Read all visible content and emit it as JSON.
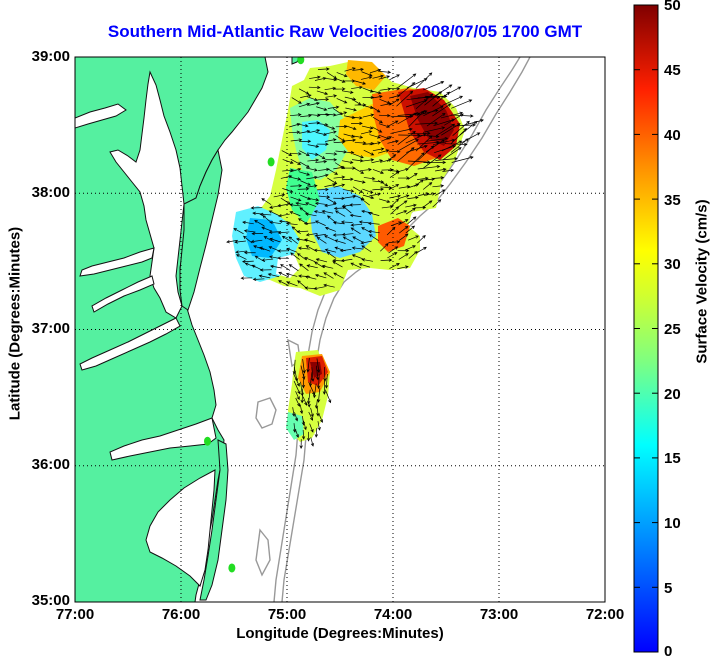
{
  "title": "Southern Mid-Atlantic Raw Velocities 2008/07/05 1700 GMT",
  "x_axis": {
    "label": "Longitude (Degrees:Minutes)",
    "ticks": [
      "77:00",
      "76:00",
      "75:00",
      "74:00",
      "73:00",
      "72:00"
    ]
  },
  "y_axis": {
    "label": "Latitude (Degrees:Minutes)",
    "ticks": [
      "39:00",
      "38:00",
      "37:00",
      "36:00",
      "35:00"
    ]
  },
  "colorbar": {
    "label": "Surface Velocity (cm/s)",
    "ticks": [
      "50",
      "45",
      "40",
      "35",
      "30",
      "25",
      "20",
      "15",
      "10",
      "5",
      "0"
    ],
    "range": [
      0,
      50
    ],
    "colormap": "jet"
  },
  "colors": {
    "land": "#55f0a0",
    "coastline": "#111111",
    "bathymetry": "#999999",
    "title": "#0000ff",
    "station": "#22dd22"
  },
  "map": {
    "lon_range": [
      -77,
      -72
    ],
    "lat_range": [
      35,
      39
    ],
    "grid": "dotted",
    "stations": [
      {
        "lon": -74.87,
        "lat": 38.98
      },
      {
        "lon": -75.15,
        "lat": 38.23
      },
      {
        "lon": -75.75,
        "lat": 36.18
      },
      {
        "lon": -75.52,
        "lat": 35.25
      }
    ]
  }
}
